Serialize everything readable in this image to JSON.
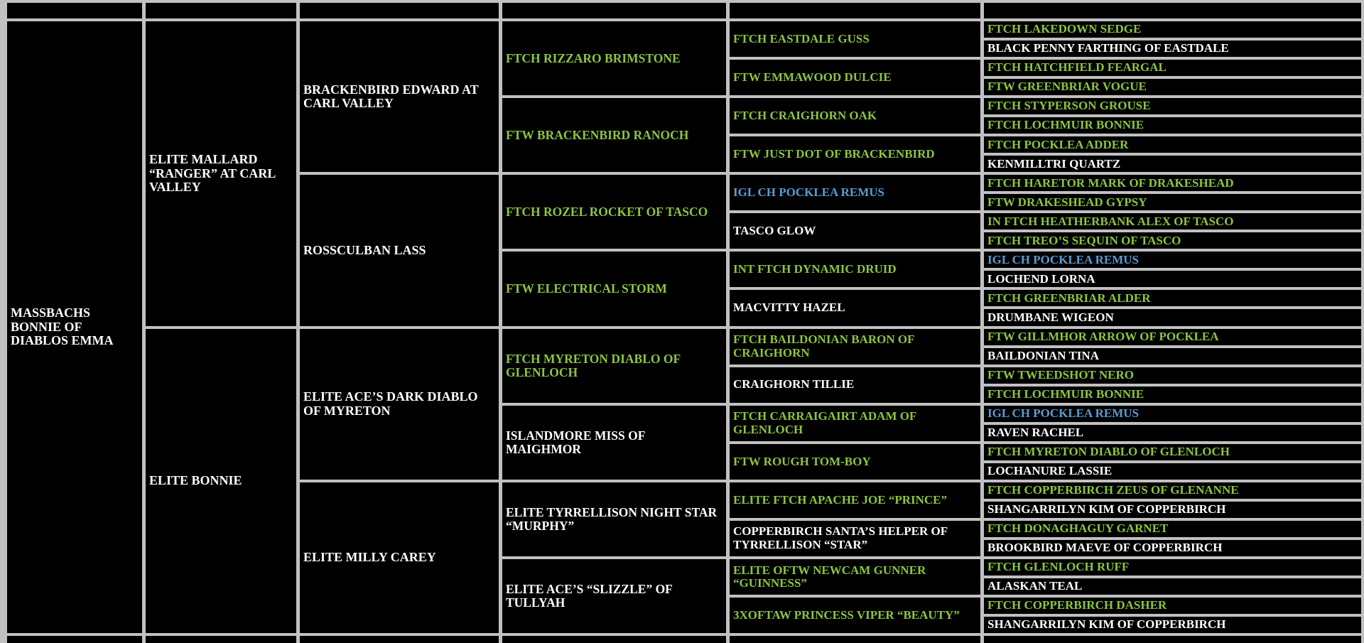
{
  "table": {
    "colors": {
      "grid": "#c1c1c1",
      "cell_bg": "#000000",
      "white": "#ffffff",
      "green": "#8cc63f",
      "blue": "#5b9bd5"
    },
    "generations": [
      {
        "name": "generation-1",
        "cells": [
          {
            "text": "MASSBACHS BONNIE OF DIABLOS EMMA",
            "color": "white"
          }
        ]
      },
      {
        "name": "generation-2",
        "cells": [
          {
            "text": "ELITE MALLARD “RANGER” AT CARL VALLEY",
            "color": "white"
          },
          {
            "text": "ELITE BONNIE",
            "color": "white"
          }
        ]
      },
      {
        "name": "generation-3",
        "cells": [
          {
            "text": "BRACKENBIRD EDWARD AT CARL VALLEY",
            "color": "white"
          },
          {
            "text": "ROSSCULBAN LASS",
            "color": "white"
          },
          {
            "text": "ELITE ACE’S DARK DIABLO OF MYRETON",
            "color": "white"
          },
          {
            "text": "ELITE MILLY CAREY",
            "color": "white"
          }
        ]
      },
      {
        "name": "generation-4",
        "cells": [
          {
            "text": "FTCH RIZZARO BRIMSTONE",
            "color": "green"
          },
          {
            "text": "FTW BRACKENBIRD RANOCH",
            "color": "green"
          },
          {
            "text": "FTCH ROZEL ROCKET OF TASCO",
            "color": "green"
          },
          {
            "text": "FTW ELECTRICAL STORM",
            "color": "green"
          },
          {
            "text": "FTCH MYRETON DIABLO OF GLENLOCH",
            "color": "green"
          },
          {
            "text": "ISLANDMORE MISS OF MAIGHMOR",
            "color": "white"
          },
          {
            "text": "ELITE TYRRELLISON NIGHT STAR “MURPHY”",
            "color": "white"
          },
          {
            "text": "ELITE ACE’S “SLIZZLE” OF TULLYAH",
            "color": "white"
          }
        ]
      },
      {
        "name": "generation-5",
        "cells": [
          {
            "text": "FTCH EASTDALE GUSS",
            "color": "green"
          },
          {
            "text": "FTW EMMAWOOD DULCIE",
            "color": "green"
          },
          {
            "text": "FTCH CRAIGHORN OAK",
            "color": "green"
          },
          {
            "text": "FTW JUST DOT OF BRACKENBIRD",
            "color": "green"
          },
          {
            "text": "IGL CH POCKLEA REMUS",
            "color": "blue"
          },
          {
            "text": "TASCO GLOW",
            "color": "white"
          },
          {
            "text": "INT FTCH DYNAMIC DRUID",
            "color": "green"
          },
          {
            "text": "MACVITTY HAZEL",
            "color": "white"
          },
          {
            "text": "FTCH BAILDONIAN BARON OF CRAIGHORN",
            "color": "green"
          },
          {
            "text": "CRAIGHORN TILLIE",
            "color": "white"
          },
          {
            "text": "FTCH CARRAIGAIRT ADAM OF GLENLOCH",
            "color": "green"
          },
          {
            "text": "FTW ROUGH TOM-BOY",
            "color": "green"
          },
          {
            "text": "ELITE FTCH APACHE JOE “PRINCE”",
            "color": "green"
          },
          {
            "text": "COPPERBIRCH SANTA’S HELPER OF TYRRELLISON “STAR”",
            "color": "white"
          },
          {
            "text": "ELITE OFTW NEWCAM GUNNER “GUINNESS”",
            "color": "green"
          },
          {
            "text": "3xOFTAW PRINCESS VIPER “BEAUTY”",
            "color": "green"
          }
        ]
      },
      {
        "name": "generation-6",
        "cells": [
          {
            "text": "FTCH LAKEDOWN SEDGE",
            "color": "green"
          },
          {
            "text": "BLACK PENNY FARTHING OF EASTDALE",
            "color": "white"
          },
          {
            "text": "FTCH HATCHFIELD FEARGAL",
            "color": "green"
          },
          {
            "text": "FTW GREENBRIAR VOGUE",
            "color": "green"
          },
          {
            "text": "FTCH STYPERSON GROUSE",
            "color": "green"
          },
          {
            "text": "FTCH LOCHMUIR BONNIE",
            "color": "green"
          },
          {
            "text": "FTCH POCKLEA ADDER",
            "color": "green"
          },
          {
            "text": "KENMILLTRI QUARTZ",
            "color": "white"
          },
          {
            "text": "FTCH HARETOR MARK OF DRAKESHEAD",
            "color": "green"
          },
          {
            "text": "FTW DRAKESHEAD GYPSY",
            "color": "green"
          },
          {
            "text": "IN FTCH HEATHERBANK ALEX OF TASCO",
            "color": "green"
          },
          {
            "text": "FTCH TREO’S SEQUIN OF TASCO",
            "color": "green"
          },
          {
            "text": "IGL CH POCKLEA REMUS",
            "color": "blue"
          },
          {
            "text": "LOCHEND LORNA",
            "color": "white"
          },
          {
            "text": "FTCH GREENBRIAR ALDER",
            "color": "green"
          },
          {
            "text": "DRUMBANE WIGEON",
            "color": "white"
          },
          {
            "text": "FTW GILLMHOR ARROW OF POCKLEA",
            "color": "green"
          },
          {
            "text": "BAILDONIAN TINA",
            "color": "white"
          },
          {
            "text": "FTW TWEEDSHOT NERO",
            "color": "green"
          },
          {
            "text": "FTCH LOCHMUIR BONNIE",
            "color": "green"
          },
          {
            "text": "IGL CH POCKLEA REMUS",
            "color": "blue"
          },
          {
            "text": "RAVEN RACHEL",
            "color": "white"
          },
          {
            "text": "FTCH MYRETON DIABLO OF GLENLOCH",
            "color": "green"
          },
          {
            "text": "LOCHANURE LASSIE",
            "color": "white"
          },
          {
            "text": "FTCH COPPERBIRCH ZEUS OF GLENANNE",
            "color": "green"
          },
          {
            "text": "SHANGARRILYN KIM OF COPPERBIRCH",
            "color": "white"
          },
          {
            "text": "FTCH DONAGHAGUY GARNET",
            "color": "green"
          },
          {
            "text": "BROOKBIRD MAEVE OF COPPERBIRCH",
            "color": "white"
          },
          {
            "text": "FTCH GLENLOCH RUFF",
            "color": "green"
          },
          {
            "text": "ALASKAN TEAL",
            "color": "white"
          },
          {
            "text": "FTCH COPPERBIRCH DASHER",
            "color": "green"
          },
          {
            "text": "SHANGARRILYN KIM OF COPPERBIRCH",
            "color": "white"
          }
        ]
      }
    ]
  }
}
